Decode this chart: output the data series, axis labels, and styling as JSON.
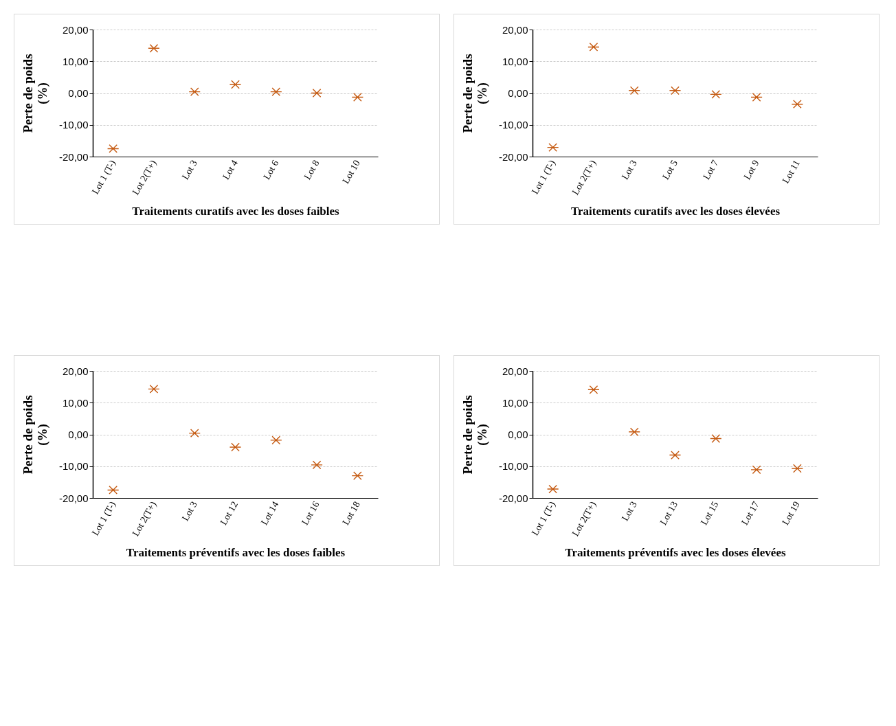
{
  "chart_data": [
    {
      "type": "scatter",
      "xlabel": "Traitements curatifs avec les doses faibles",
      "ylabel": "Perte de poids (%)",
      "categories": [
        "Lot 1 (T-)",
        "Lot 2(T+)",
        "Lot 3",
        "Lot 4",
        "Lot 6",
        "Lot 8",
        "Lot 10"
      ],
      "series": [
        {
          "color": "#c55a11",
          "values": [
            -17.5,
            14.1,
            0.4,
            2.7,
            0.4,
            0,
            -1.3
          ]
        }
      ],
      "ylim": [
        -20,
        20
      ],
      "yticks": [
        {
          "value": -20,
          "label": "-20,00"
        },
        {
          "value": -10,
          "label": "-10,00"
        },
        {
          "value": 0,
          "label": "0,00"
        },
        {
          "value": 10,
          "label": "10,00"
        },
        {
          "value": 20,
          "label": "20,00"
        }
      ],
      "grid": "y",
      "marker": "cross"
    },
    {
      "type": "scatter",
      "xlabel": "Traitements curatifs avec les doses élevées",
      "ylabel": "Perte de poids (%)",
      "categories": [
        "Lot 1 (T-)",
        "Lot 2(T+)",
        "Lot 3",
        "Lot 5",
        "Lot 7",
        "Lot 9",
        "Lot 11"
      ],
      "series": [
        {
          "color": "#c55a11",
          "values": [
            -17.1,
            14.5,
            0.8,
            0.8,
            -0.4,
            -1.3,
            -3.5
          ]
        }
      ],
      "ylim": [
        -20,
        20
      ],
      "yticks": [
        {
          "value": -20,
          "label": "-20,00"
        },
        {
          "value": -10,
          "label": "-10,00"
        },
        {
          "value": 0,
          "label": "0,00"
        },
        {
          "value": 10,
          "label": "10,00"
        },
        {
          "value": 20,
          "label": "20,00"
        }
      ],
      "grid": "y",
      "marker": "cross"
    },
    {
      "type": "scatter",
      "xlabel": "Traitements préventifs avec les doses faibles",
      "ylabel": "Perte de poids (%)",
      "categories": [
        "Lot 1 (T-)",
        "Lot 2(T+)",
        "Lot 3",
        "Lot 12",
        "Lot 14",
        "Lot 16",
        "Lot 18"
      ],
      "series": [
        {
          "color": "#c55a11",
          "values": [
            -17.5,
            14.3,
            0.4,
            -4.0,
            -1.8,
            -9.6,
            -13.0
          ]
        }
      ],
      "ylim": [
        -20,
        20
      ],
      "yticks": [
        {
          "value": -20,
          "label": "-20,00"
        },
        {
          "value": -10,
          "label": "-10,00"
        },
        {
          "value": 0,
          "label": "0,00"
        },
        {
          "value": 10,
          "label": "10,00"
        },
        {
          "value": 20,
          "label": "20,00"
        }
      ],
      "grid": "y",
      "marker": "cross"
    },
    {
      "type": "scatter",
      "xlabel": "Traitements préventifs avec les doses élevées",
      "ylabel": "Perte de poids (%)",
      "categories": [
        "Lot 1 (T-)",
        "Lot 2(T+)",
        "Lot 3",
        "Lot 13",
        "Lot 15",
        "Lot 17",
        "Lot 19"
      ],
      "series": [
        {
          "color": "#c55a11",
          "values": [
            -17.2,
            14.1,
            0.8,
            -6.5,
            -1.3,
            -11.1,
            -10.7
          ]
        }
      ],
      "ylim": [
        -20,
        20
      ],
      "yticks": [
        {
          "value": -20,
          "label": "-20,00"
        },
        {
          "value": -10,
          "label": "-10,00"
        },
        {
          "value": 0,
          "label": "0,00"
        },
        {
          "value": 10,
          "label": "10,00"
        },
        {
          "value": 20,
          "label": "20,00"
        }
      ],
      "grid": "y",
      "marker": "cross"
    }
  ]
}
